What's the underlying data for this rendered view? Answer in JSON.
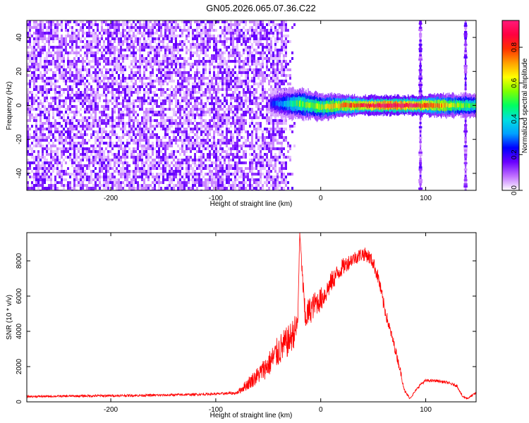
{
  "chart_data": [
    {
      "type": "heatmap",
      "title": "GN05.2026.065.07.36.C22",
      "xlabel": "Height of straight line (km)",
      "ylabel": "Frequency (Hz)",
      "xlim": [
        -280,
        148
      ],
      "ylim": [
        -50,
        50
      ],
      "x_ticks": [
        -200,
        -100,
        0,
        100
      ],
      "y_ticks": [
        -40,
        -20,
        0,
        20,
        40
      ],
      "colorbar": {
        "label": "Normalized spectral amplitude",
        "range": [
          0,
          0.95
        ],
        "ticks": [
          0.0,
          0.2,
          0.4,
          0.6,
          0.8
        ],
        "colors": [
          "#ffffff",
          "#c070ff",
          "#6a00ff",
          "#0000ff",
          "#00a0ff",
          "#00e0e0",
          "#00ff60",
          "#80ff00",
          "#ffff00",
          "#ffa000",
          "#ff3000",
          "#ff0040",
          "#ff1a7a"
        ]
      },
      "noise_region": {
        "x_range": [
          -280,
          -35
        ],
        "y_range": [
          -50,
          50
        ],
        "amplitude": 0.05
      },
      "signal_band": [
        {
          "x": -48,
          "center": 1,
          "halfwidth": 3,
          "amplitude": 0.25
        },
        {
          "x": -35,
          "center": 1,
          "halfwidth": 4,
          "amplitude": 0.35
        },
        {
          "x": -20,
          "center": 1,
          "halfwidth": 4,
          "amplitude": 0.55
        },
        {
          "x": 0,
          "center": -1,
          "halfwidth": 3.5,
          "amplitude": 0.6
        },
        {
          "x": 20,
          "center": 0,
          "halfwidth": 3,
          "amplitude": 0.75
        },
        {
          "x": 40,
          "center": 0,
          "halfwidth": 2.5,
          "amplitude": 0.85
        },
        {
          "x": 60,
          "center": 0,
          "halfwidth": 2.5,
          "amplitude": 0.95
        },
        {
          "x": 85,
          "center": 0,
          "halfwidth": 2.5,
          "amplitude": 0.9
        },
        {
          "x": 110,
          "center": 0,
          "halfwidth": 3,
          "amplitude": 0.75
        },
        {
          "x": 140,
          "center": 0,
          "halfwidth": 3,
          "amplitude": 0.55
        },
        {
          "x": 148,
          "center": 0,
          "halfwidth": 3,
          "amplitude": 0.5
        }
      ],
      "vertical_lines": [
        {
          "x": 95,
          "amplitude": 0.15
        },
        {
          "x": 138,
          "amplitude": 0.15
        }
      ]
    },
    {
      "type": "line",
      "xlabel": "Height of straight line (km)",
      "ylabel": "SNR (10 * v/v)",
      "xlim": [
        -280,
        148
      ],
      "ylim": [
        0,
        9600
      ],
      "x_ticks": [
        -200,
        -100,
        0,
        100
      ],
      "y_ticks": [
        0,
        2000,
        4000,
        6000,
        8000
      ],
      "series": [
        {
          "color": "#ff0000",
          "x": [
            -280,
            -250,
            -200,
            -150,
            -120,
            -100,
            -80,
            -70,
            -60,
            -50,
            -40,
            -30,
            -22,
            -20,
            -15,
            -10,
            -5,
            0,
            5,
            10,
            20,
            30,
            40,
            45,
            50,
            55,
            60,
            65,
            70,
            75,
            80,
            85,
            90,
            95,
            100,
            110,
            120,
            130,
            135,
            140,
            148
          ],
          "y": [
            300,
            320,
            350,
            380,
            420,
            450,
            500,
            1000,
            1500,
            2100,
            2900,
            3500,
            4300,
            9600,
            4800,
            5200,
            5600,
            5800,
            6200,
            6800,
            7600,
            8100,
            8400,
            8300,
            7900,
            7000,
            5500,
            4300,
            3200,
            2000,
            600,
            200,
            600,
            1000,
            1200,
            1200,
            1100,
            900,
            300,
            200,
            500
          ],
          "noise": [
            60,
            60,
            70,
            70,
            70,
            70,
            90,
            350,
            500,
            700,
            900,
            900,
            900,
            0,
            900,
            800,
            700,
            700,
            600,
            600,
            500,
            400,
            400,
            400,
            400,
            400,
            400,
            300,
            300,
            250,
            100,
            60,
            60,
            80,
            80,
            80,
            80,
            80,
            60,
            60,
            80
          ]
        }
      ]
    }
  ]
}
